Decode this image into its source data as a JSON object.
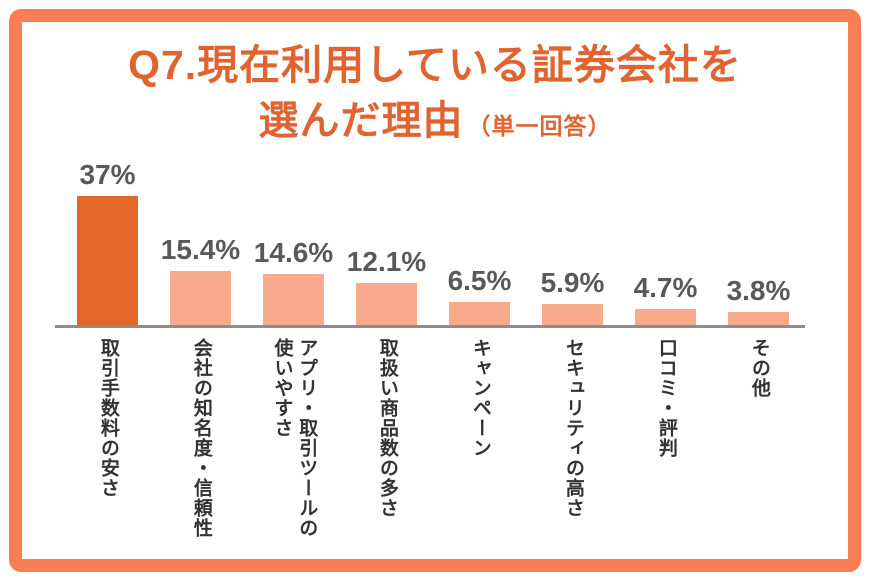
{
  "page": {
    "background": "#ffffff",
    "frame_color": "#FA7E54"
  },
  "title": {
    "line1": "Q7.現在利用している証券会社を",
    "line2_main": "選んだ理由",
    "line2_sub": "（単一回答）",
    "color": "#DF6430"
  },
  "chart_data": {
    "type": "bar",
    "title": "Q7.現在利用している証券会社を選んだ理由（単一回答）",
    "unit": "%",
    "categories": [
      "取引手数料の安さ",
      "会社の知名度・信頼性",
      "アプリ・取引ツールの使いやすさ",
      "取扱い商品数の多さ",
      "キャンペーン",
      "セキュリティの高さ",
      "口コミ・評判",
      "その他"
    ],
    "category_columns": [
      [
        "取引手数料の安さ"
      ],
      [
        "会社の知名度・信頼性"
      ],
      [
        "アプリ・取引ツールの",
        "使いやすさ"
      ],
      [
        "取扱い商品数の多さ"
      ],
      [
        "キャンペーン"
      ],
      [
        "セキュリティの高さ"
      ],
      [
        "口コミ・評判"
      ],
      [
        "その他"
      ]
    ],
    "values": [
      37,
      15.4,
      14.6,
      12.1,
      6.5,
      5.9,
      4.7,
      3.8
    ],
    "value_labels": [
      "37%",
      "15.4%",
      "14.6%",
      "12.1%",
      "6.5%",
      "5.9%",
      "4.7%",
      "3.8%"
    ],
    "highlight_index": 0,
    "bar_color_highlight": "#E5672A",
    "bar_color_default": "#F9A98C",
    "value_label_color": "#595959",
    "category_label_color": "#333333",
    "axis_color": "#8C8C8C",
    "ylim": [
      0,
      40
    ],
    "grid": false,
    "legend": false,
    "xlabel": "",
    "ylabel": ""
  }
}
